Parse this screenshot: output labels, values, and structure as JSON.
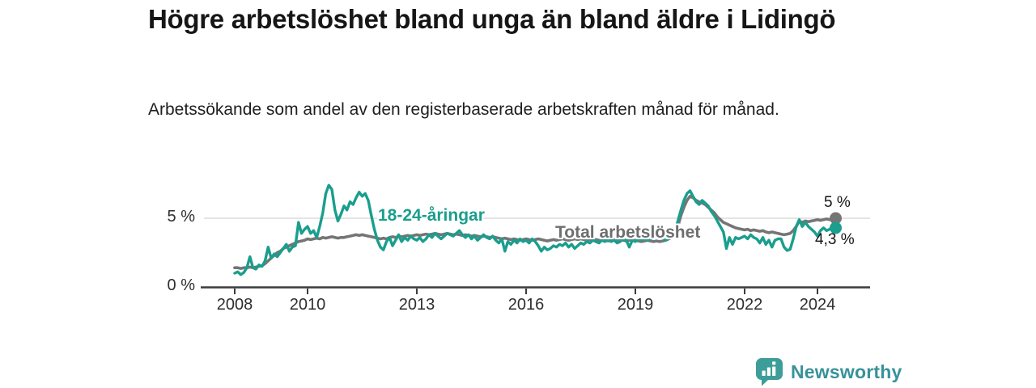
{
  "header": {
    "title": "Högre arbetslöshet bland unga än bland äldre i Lidingö",
    "subtitle": "Arbetssökande som andel av den registerbaserade arbetskraften månad för månad."
  },
  "chart_data": {
    "type": "line",
    "title": "Högre arbetslöshet bland unga än bland äldre i Lidingö",
    "subtitle": "Arbetssökande som andel av den registerbaserade arbetskraften månad för månad.",
    "x_axis": {
      "ticks": [
        2008,
        2010,
        2013,
        2016,
        2019,
        2022,
        2024
      ],
      "tick_labels": [
        "2008",
        "2010",
        "2013",
        "2016",
        "2019",
        "2022",
        "2024"
      ],
      "range": [
        2008,
        2024.6
      ]
    },
    "y_axis": {
      "ticks": [
        0,
        5
      ],
      "tick_labels": [
        "0 %",
        "5 %"
      ],
      "range": [
        0,
        7.8
      ],
      "gridlines": [
        5
      ]
    },
    "legend": "inline-labels",
    "start_year": 2008,
    "points_per_year": 12,
    "series": [
      {
        "name": "18-24-åringar",
        "color": "#1a9e8d",
        "end_label": "4,3 %",
        "end_value": 4.3,
        "values": [
          1.0,
          1.1,
          0.9,
          1.05,
          1.4,
          2.2,
          1.4,
          1.3,
          1.6,
          1.5,
          1.9,
          2.9,
          2.1,
          2.4,
          2.2,
          2.5,
          2.8,
          3.1,
          2.6,
          2.9,
          3.0,
          4.7,
          3.9,
          4.2,
          4.4,
          3.9,
          4.1,
          3.6,
          4.4,
          5.4,
          6.8,
          7.4,
          7.1,
          5.6,
          4.8,
          5.3,
          5.9,
          5.6,
          6.2,
          6.0,
          6.5,
          6.9,
          6.6,
          6.8,
          6.3,
          5.2,
          4.2,
          3.4,
          2.9,
          2.7,
          3.3,
          3.6,
          3.0,
          3.4,
          3.8,
          3.3,
          3.6,
          3.4,
          3.7,
          3.5,
          3.4,
          3.6,
          3.3,
          3.5,
          3.8,
          3.6,
          3.9,
          3.7,
          3.5,
          3.7,
          3.9,
          3.8,
          3.7,
          3.9,
          4.1,
          3.8,
          3.6,
          3.8,
          3.5,
          3.7,
          3.4,
          3.6,
          3.8,
          3.6,
          3.5,
          3.7,
          3.4,
          3.2,
          3.5,
          2.6,
          3.3,
          3.1,
          3.4,
          3.2,
          3.5,
          3.3,
          3.4,
          3.2,
          3.5,
          3.3,
          3.0,
          2.6,
          2.9,
          2.7,
          2.8,
          3.0,
          2.9,
          3.1,
          3.0,
          3.2,
          2.9,
          3.1,
          2.8,
          3.0,
          3.2,
          3.1,
          3.3,
          3.2,
          3.4,
          3.3,
          3.2,
          3.4,
          3.3,
          3.5,
          3.3,
          3.4,
          3.2,
          3.3,
          3.5,
          3.4,
          2.9,
          3.4,
          3.3,
          3.5,
          3.4,
          3.6,
          3.4,
          3.5,
          3.7,
          3.6,
          3.8,
          3.6,
          3.4,
          3.5,
          3.7,
          4.0,
          4.8,
          5.6,
          6.3,
          6.8,
          7.0,
          6.6,
          6.2,
          6.0,
          6.3,
          6.1,
          5.9,
          5.5,
          5.2,
          4.8,
          4.4,
          4.0,
          2.8,
          3.6,
          3.1,
          3.6,
          3.5,
          3.6,
          3.7,
          3.5,
          3.8,
          3.6,
          3.5,
          3.2,
          3.6,
          3.1,
          3.4,
          2.9,
          3.4,
          3.5,
          3.5,
          2.9,
          2.65,
          2.75,
          3.5,
          4.4,
          4.9,
          4.4,
          4.7,
          4.4,
          4.2,
          4.0,
          3.7,
          4.1,
          4.3,
          4.1,
          4.2,
          4.4,
          4.3
        ]
      },
      {
        "name": "Total arbetslöshet",
        "color": "#757575",
        "end_label": "5 %",
        "end_value": 5,
        "values": [
          1.4,
          1.4,
          1.35,
          1.4,
          1.4,
          1.45,
          1.4,
          1.45,
          1.5,
          1.55,
          1.7,
          1.9,
          2.1,
          2.3,
          2.5,
          2.6,
          2.8,
          2.9,
          3.0,
          3.1,
          3.2,
          3.3,
          3.35,
          3.4,
          3.5,
          3.45,
          3.5,
          3.55,
          3.5,
          3.6,
          3.55,
          3.6,
          3.65,
          3.6,
          3.55,
          3.6,
          3.6,
          3.65,
          3.7,
          3.75,
          3.8,
          3.75,
          3.8,
          3.75,
          3.7,
          3.65,
          3.6,
          3.55,
          3.5,
          3.55,
          3.5,
          3.6,
          3.65,
          3.6,
          3.7,
          3.65,
          3.7,
          3.75,
          3.7,
          3.75,
          3.8,
          3.75,
          3.8,
          3.85,
          3.8,
          3.85,
          3.9,
          3.85,
          3.8,
          3.85,
          3.9,
          3.85,
          3.8,
          3.85,
          3.8,
          3.75,
          3.8,
          3.75,
          3.7,
          3.75,
          3.7,
          3.65,
          3.7,
          3.65,
          3.6,
          3.65,
          3.6,
          3.55,
          3.5,
          3.55,
          3.5,
          3.45,
          3.5,
          3.45,
          3.4,
          3.45,
          3.5,
          3.45,
          3.4,
          3.45,
          3.5,
          3.45,
          3.4,
          3.35,
          3.4,
          3.45,
          3.4,
          3.45,
          3.5,
          3.45,
          3.4,
          3.45,
          3.5,
          3.45,
          3.5,
          3.45,
          3.4,
          3.45,
          3.5,
          3.45,
          3.4,
          3.45,
          3.4,
          3.35,
          3.4,
          3.45,
          3.4,
          3.45,
          3.4,
          3.35,
          3.4,
          3.45,
          3.4,
          3.35,
          3.3,
          3.35,
          3.4,
          3.35,
          3.3,
          3.35,
          3.3,
          3.35,
          3.4,
          3.5,
          3.6,
          3.8,
          4.4,
          5.2,
          5.8,
          6.3,
          6.6,
          6.5,
          6.3,
          6.2,
          6.1,
          6.0,
          5.8,
          5.6,
          5.4,
          5.1,
          4.9,
          4.7,
          4.6,
          4.5,
          4.4,
          4.3,
          4.25,
          4.2,
          4.15,
          4.2,
          4.1,
          4.15,
          4.1,
          4.05,
          4.1,
          4.0,
          3.95,
          4.0,
          3.95,
          3.9,
          3.85,
          3.8,
          3.85,
          3.9,
          4.1,
          4.4,
          4.8,
          4.7,
          4.8,
          4.75,
          4.8,
          4.85,
          4.9,
          4.85,
          4.9,
          4.95,
          4.9,
          4.95,
          5.0
        ]
      }
    ],
    "colors": {
      "axis": "#3c3c3c",
      "gridline": "#dcdcdc",
      "tick_text": "#2e2e2e"
    }
  },
  "footer": {
    "brand": "Newsworthy",
    "logo_icon": "bar-chart-speech-bubble-icon",
    "brand_color": "#38929a",
    "icon_color": "#3d9d99"
  }
}
